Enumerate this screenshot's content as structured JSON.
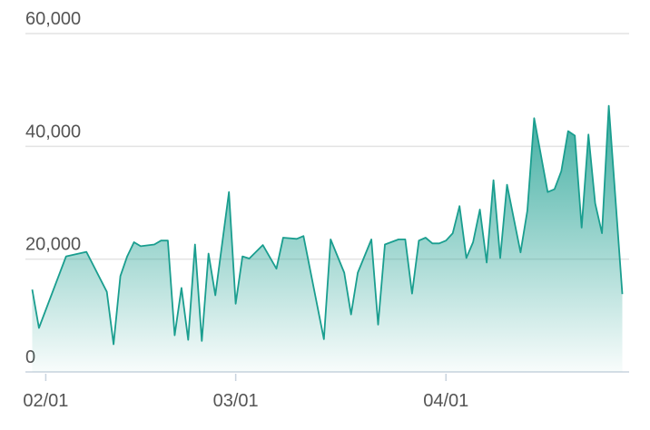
{
  "chart_data": {
    "type": "area",
    "color": "#1a9e8f",
    "grid": true,
    "x": [
      "01/30",
      "01/31",
      "02/04",
      "02/07",
      "02/10",
      "02/11",
      "02/12",
      "02/13",
      "02/14",
      "02/15",
      "02/17",
      "02/18",
      "02/19",
      "02/20",
      "02/21",
      "02/22",
      "02/23",
      "02/24",
      "02/25",
      "02/26",
      "02/28",
      "03/01",
      "03/02",
      "03/03",
      "03/05",
      "03/07",
      "03/08",
      "03/10",
      "03/11",
      "03/14",
      "03/15",
      "03/17",
      "03/18",
      "03/19",
      "03/21",
      "03/22",
      "03/23",
      "03/25",
      "03/26",
      "03/27",
      "03/28",
      "03/29",
      "03/30",
      "03/31",
      "04/01",
      "04/02",
      "04/03",
      "04/04",
      "04/05",
      "04/06",
      "04/07",
      "04/08",
      "04/09",
      "04/10",
      "04/12",
      "04/13",
      "04/14",
      "04/16",
      "04/17",
      "04/18",
      "04/19",
      "04/20",
      "04/21",
      "04/22",
      "04/23",
      "04/24",
      "04/25",
      "04/27"
    ],
    "values": [
      14600,
      7800,
      20500,
      21300,
      14200,
      4900,
      17000,
      20500,
      23000,
      22300,
      22600,
      23300,
      23300,
      6500,
      14900,
      5700,
      22600,
      5500,
      21000,
      13600,
      31900,
      12100,
      20500,
      20100,
      22500,
      18300,
      23800,
      23600,
      24100,
      5800,
      23500,
      17600,
      10200,
      17600,
      23500,
      8400,
      22600,
      23500,
      23500,
      13900,
      23300,
      23800,
      22800,
      22800,
      23300,
      24600,
      29400,
      20200,
      23000,
      28800,
      19400,
      34000,
      20200,
      33200,
      21200,
      28600,
      45000,
      31900,
      32400,
      35600,
      42700,
      41900,
      25600,
      42100,
      29900,
      24600,
      47200,
      13800
    ],
    "xlim": [
      "01/29",
      "04/28"
    ],
    "xticks": [
      "02/01",
      "03/01",
      "04/01"
    ],
    "ylim": [
      0,
      60000
    ],
    "yticks": [
      0,
      {
        "value": 20000,
        "label": "20,000"
      },
      {
        "value": 40000,
        "label": "40,000"
      },
      {
        "value": 60000,
        "label": "60,000"
      }
    ]
  }
}
